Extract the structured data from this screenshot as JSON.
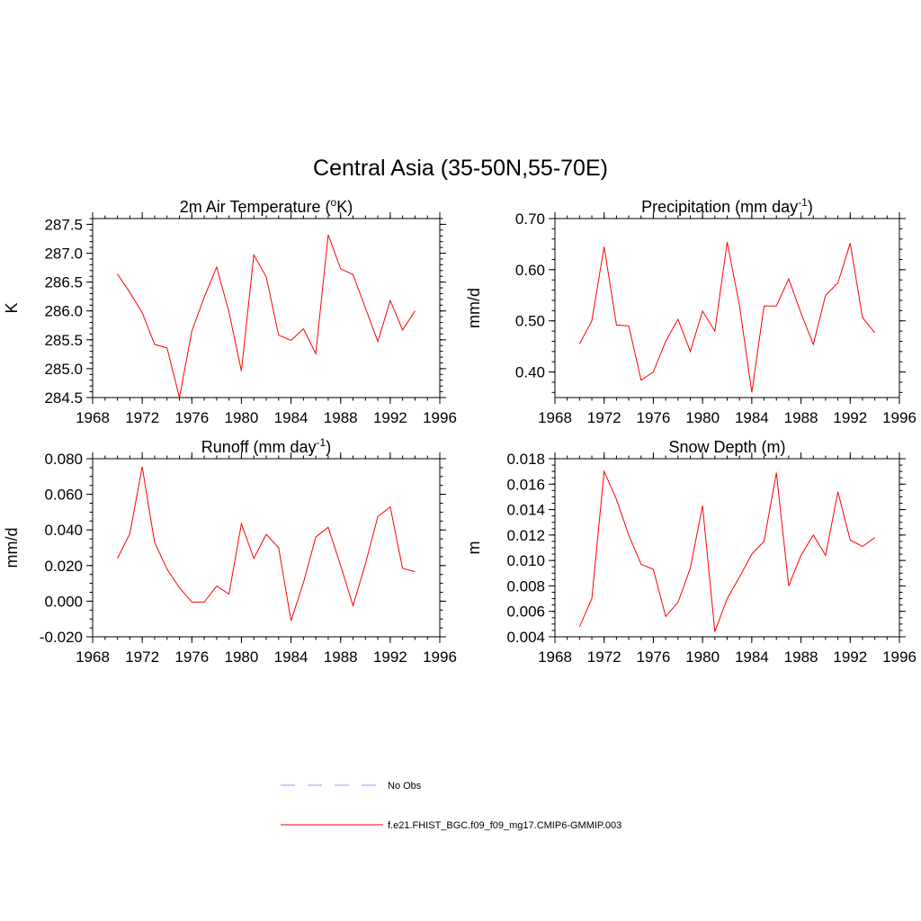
{
  "title": "Central Asia (35-50N,55-70E)",
  "chart_data": [
    {
      "id": "temp",
      "type": "line",
      "title_main": "2m Air Temperature (",
      "title_sup": "o",
      "title_end": "K)",
      "ylabel": "K",
      "xlim": [
        1968,
        1996
      ],
      "ylim": [
        284.5,
        287.6
      ],
      "xticks": [
        1968,
        1972,
        1976,
        1980,
        1984,
        1988,
        1992,
        1996
      ],
      "yticks": [
        "284.5",
        "285.0",
        "285.5",
        "286.0",
        "286.5",
        "287.0",
        "287.5"
      ],
      "yminor": 0.1,
      "xminor": 1,
      "series": [
        {
          "color": "#ff0000",
          "x": [
            1970,
            1971,
            1972,
            1973,
            1974,
            1975,
            1976,
            1977,
            1978,
            1979,
            1980,
            1981,
            1982,
            1983,
            1984,
            1985,
            1986,
            1987,
            1988,
            1989,
            1990,
            1991,
            1992,
            1993,
            1994
          ],
          "y": [
            286.64,
            286.32,
            285.97,
            285.42,
            285.36,
            284.5,
            285.65,
            286.24,
            286.76,
            285.98,
            284.96,
            286.97,
            286.59,
            285.58,
            285.49,
            285.69,
            285.26,
            287.32,
            286.73,
            286.63,
            286.05,
            285.47,
            286.18,
            285.67,
            286.0
          ]
        }
      ]
    },
    {
      "id": "precip",
      "type": "line",
      "title_main": "Precipitation (mm day",
      "title_sup": "-1",
      "title_end": ")",
      "ylabel": "mm/d",
      "xlim": [
        1968,
        1996
      ],
      "ylim": [
        0.35,
        0.7
      ],
      "xticks": [
        1968,
        1972,
        1976,
        1980,
        1984,
        1988,
        1992,
        1996
      ],
      "yticks": [
        "0.40",
        "0.50",
        "0.60",
        "0.70"
      ],
      "yminor": 0.02,
      "xminor": 1,
      "series": [
        {
          "color": "#ff0000",
          "x": [
            1970,
            1971,
            1972,
            1973,
            1974,
            1975,
            1976,
            1977,
            1978,
            1979,
            1980,
            1981,
            1982,
            1983,
            1984,
            1985,
            1986,
            1987,
            1988,
            1989,
            1990,
            1991,
            1992,
            1993,
            1994
          ],
          "y": [
            0.455,
            0.5,
            0.645,
            0.492,
            0.49,
            0.384,
            0.4,
            0.46,
            0.503,
            0.44,
            0.519,
            0.48,
            0.654,
            0.53,
            0.36,
            0.529,
            0.529,
            0.582,
            0.515,
            0.454,
            0.55,
            0.574,
            0.652,
            0.506,
            0.477
          ]
        }
      ]
    },
    {
      "id": "runoff",
      "type": "line",
      "title_main": "Runoff (mm day",
      "title_sup": "-1",
      "title_end": ")",
      "ylabel": "mm/d",
      "xlim": [
        1968,
        1996
      ],
      "ylim": [
        -0.02,
        0.08
      ],
      "xticks": [
        1968,
        1972,
        1976,
        1980,
        1984,
        1988,
        1992,
        1996
      ],
      "yticks": [
        "-0.020",
        "0.000",
        "0.020",
        "0.040",
        "0.060",
        "0.080"
      ],
      "yminor": 0.005,
      "xminor": 1,
      "series": [
        {
          "color": "#ff0000",
          "x": [
            1970,
            1971,
            1972,
            1973,
            1974,
            1975,
            1976,
            1977,
            1978,
            1979,
            1980,
            1981,
            1982,
            1983,
            1984,
            1985,
            1986,
            1987,
            1988,
            1989,
            1990,
            1991,
            1992,
            1993,
            1994
          ],
          "y": [
            0.024,
            0.038,
            0.0755,
            0.033,
            0.018,
            0.0075,
            -0.0005,
            -0.0005,
            0.0085,
            0.004,
            0.0435,
            0.024,
            0.0375,
            0.03,
            -0.011,
            0.0105,
            0.036,
            0.0415,
            0.02,
            -0.0025,
            0.021,
            0.0475,
            0.053,
            0.0185,
            0.0165
          ]
        }
      ]
    },
    {
      "id": "snow",
      "type": "line",
      "title_main": "Snow Depth (m)",
      "title_sup": "",
      "title_end": "",
      "ylabel": "m",
      "xlim": [
        1968,
        1996
      ],
      "ylim": [
        0.004,
        0.018
      ],
      "xticks": [
        1968,
        1972,
        1976,
        1980,
        1984,
        1988,
        1992,
        1996
      ],
      "yticks": [
        "0.004",
        "0.006",
        "0.008",
        "0.010",
        "0.012",
        "0.014",
        "0.016",
        "0.018"
      ],
      "yminor": 0.0005,
      "xminor": 1,
      "series": [
        {
          "color": "#ff0000",
          "x": [
            1970,
            1971,
            1972,
            1973,
            1974,
            1975,
            1976,
            1977,
            1978,
            1979,
            1980,
            1981,
            1982,
            1983,
            1984,
            1985,
            1986,
            1987,
            1988,
            1989,
            1990,
            1991,
            1992,
            1993,
            1994
          ],
          "y": [
            0.0048,
            0.007,
            0.017,
            0.0148,
            0.012,
            0.0097,
            0.0093,
            0.0056,
            0.0067,
            0.0094,
            0.0143,
            0.0044,
            0.007,
            0.0087,
            0.0105,
            0.0115,
            0.0169,
            0.008,
            0.0104,
            0.012,
            0.0104,
            0.0154,
            0.0116,
            0.0111,
            0.0118
          ]
        }
      ]
    }
  ],
  "legend": [
    {
      "label": "No Obs",
      "color": "#9999ff",
      "dash": true
    },
    {
      "label": "f.e21.FHIST_BGC.f09_f09_mg17.CMIP6-GMMIP.003",
      "color": "#ff0000",
      "dash": false
    }
  ]
}
